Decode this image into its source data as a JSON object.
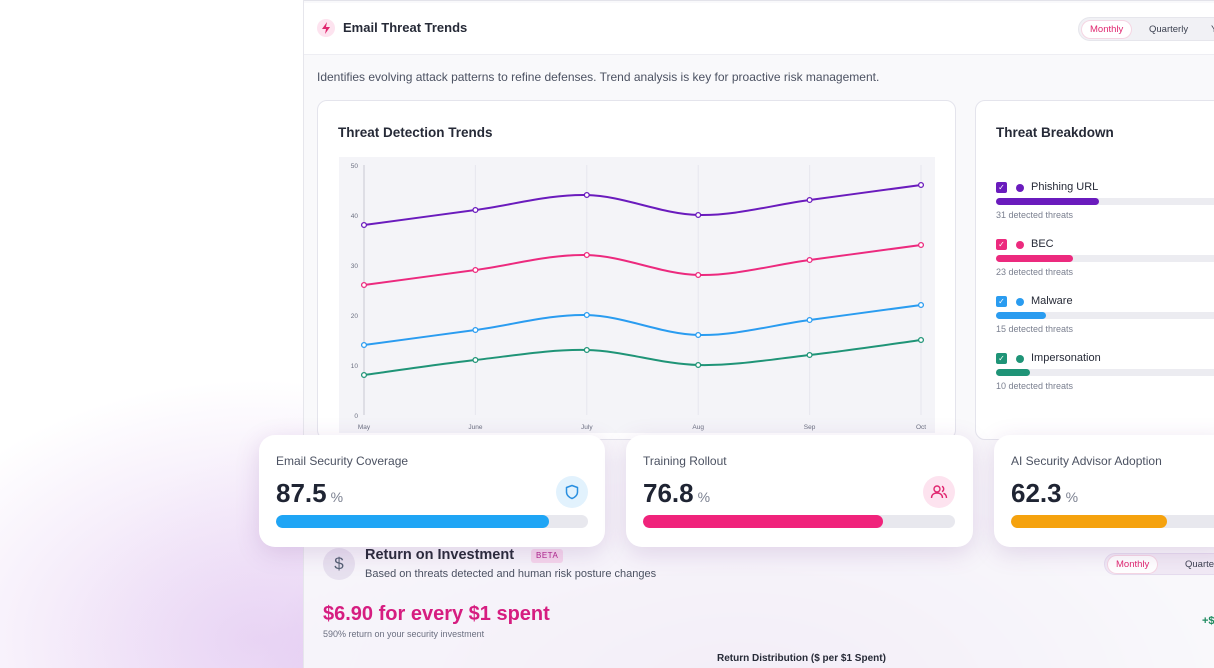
{
  "header": {
    "title": "Email Threat Trends",
    "period_options": [
      "Monthly",
      "Quarterly",
      "Y"
    ],
    "active_period": "Monthly"
  },
  "description": "Identifies evolving attack patterns to refine defenses. Trend analysis is key for proactive risk management.",
  "trends_card": {
    "title": "Threat Detection Trends"
  },
  "chart_data": {
    "type": "line",
    "x": [
      "May",
      "June",
      "July",
      "Aug",
      "Sep",
      "Oct"
    ],
    "ylim": [
      0,
      50
    ],
    "yticks": [
      0,
      10,
      20,
      30,
      40,
      50
    ],
    "grid": true,
    "series": [
      {
        "name": "Phishing URL",
        "color": "#6a1bbd",
        "values": [
          38,
          41,
          44,
          40,
          43,
          46
        ]
      },
      {
        "name": "BEC",
        "color": "#ec2a7e",
        "values": [
          26,
          29,
          32,
          28,
          31,
          34
        ]
      },
      {
        "name": "Malware",
        "color": "#2a9cf0",
        "values": [
          14,
          17,
          20,
          16,
          19,
          22
        ]
      },
      {
        "name": "Impersonation",
        "color": "#1f9477",
        "values": [
          8,
          11,
          13,
          10,
          12,
          15
        ]
      }
    ]
  },
  "breakdown_card": {
    "title": "Threat Breakdown",
    "items": [
      {
        "label": "Phishing URL",
        "sub": "31 detected threats",
        "color": "#6a1bbd",
        "fraction": 0.43
      },
      {
        "label": "BEC",
        "sub": "23 detected threats",
        "color": "#ec2a7e",
        "fraction": 0.32
      },
      {
        "label": "Malware",
        "sub": "15 detected threats",
        "color": "#2a9cf0",
        "fraction": 0.21
      },
      {
        "label": "Impersonation",
        "sub": "10 detected threats",
        "color": "#1f9477",
        "fraction": 0.14
      }
    ]
  },
  "metrics": [
    {
      "label": "Email Security Coverage",
      "value": "87.5",
      "unit": "%",
      "percent": 87.5,
      "color": "#1fa5f5",
      "icon": "shield-icon",
      "icon_bg": "#e2f2fd",
      "icon_color": "#2a8fe0"
    },
    {
      "label": "Training Rollout",
      "value": "76.8",
      "unit": "%",
      "percent": 76.8,
      "color": "#f0237b",
      "icon": "users-icon",
      "icon_bg": "#fde3ef",
      "icon_color": "#e0266f"
    },
    {
      "label": "AI Security Advisor Adoption",
      "value": "62.3",
      "unit": "%",
      "percent": 62.3,
      "color": "#f5a20e",
      "icon": "robot-icon",
      "icon_bg": "#fff1d9",
      "icon_color": "#e09310"
    }
  ],
  "roi": {
    "icon": "dollar-icon",
    "icon_glyph": "$",
    "title": "Return on Investment",
    "badge": "BETA",
    "subtitle": "Based on threats detected and human risk posture changes",
    "value": "$6.90 for every $1 spent",
    "note": "590% return on your security investment",
    "period_options": [
      "Monthly",
      "Quarterly"
    ],
    "active_period": "Monthly",
    "side_value": "+$",
    "distribution_title": "Return Distribution ($ per $1 Spent)"
  }
}
